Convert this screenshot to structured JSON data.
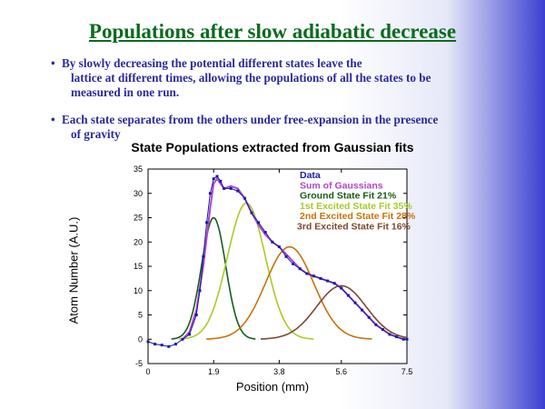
{
  "slide": {
    "title": "Populations after slow adiabatic decrease",
    "bullets": [
      {
        "line1": "By slowly decreasing the potential different states leave the",
        "line2": "lattice at different times, allowing the populations of all the states to be",
        "line3": "measured in one run."
      },
      {
        "line1": "Each state separates from the others under free-expansion in the presence",
        "line2": "of gravity"
      }
    ]
  },
  "chart_data": {
    "type": "line",
    "title": "State Populations extracted from Gaussian fits",
    "xlabel": "Position (mm)",
    "ylabel": "Atom Number (A.U.)",
    "xlim": [
      0,
      7.5
    ],
    "ylim": [
      -5,
      35
    ],
    "x_ticks": [
      "0",
      "1.9",
      "3.8",
      "5.6",
      "7.5"
    ],
    "y_ticks": [
      "35",
      "30",
      "25",
      "20",
      "15",
      "10",
      "5",
      "0",
      "-5"
    ],
    "legend_position": "top-right",
    "series": [
      {
        "name": "Data",
        "color": "#1a1aa8",
        "style": "points",
        "x": [
          0.0,
          0.2,
          0.4,
          0.6,
          0.8,
          1.0,
          1.2,
          1.4,
          1.5,
          1.6,
          1.7,
          1.8,
          1.9,
          2.0,
          2.1,
          2.2,
          2.4,
          2.6,
          2.8,
          3.0,
          3.2,
          3.4,
          3.6,
          3.8,
          4.0,
          4.2,
          4.4,
          4.6,
          4.8,
          5.0,
          5.2,
          5.4,
          5.6,
          5.8,
          6.0,
          6.2,
          6.4,
          6.6,
          6.8,
          7.0,
          7.2,
          7.4,
          7.5
        ],
        "y": [
          -0.5,
          -1,
          -1.2,
          -1.5,
          -1,
          0,
          1,
          5,
          10,
          17,
          24,
          30,
          33,
          33.5,
          32.5,
          31,
          31,
          30.5,
          29,
          26,
          24,
          22,
          20,
          19,
          17,
          15.5,
          14.5,
          13.5,
          13,
          12.5,
          12,
          11.5,
          10.5,
          9,
          7.5,
          6,
          4.5,
          3,
          2,
          1,
          0.5,
          0,
          0
        ]
      },
      {
        "name": "Sum of Gaussians",
        "color": "#b146c9",
        "style": "line",
        "x": [
          1.0,
          1.2,
          1.4,
          1.6,
          1.8,
          1.9,
          2.0,
          2.2,
          2.4,
          2.6,
          2.8,
          3.0,
          3.2,
          3.4,
          3.6,
          3.8,
          4.0,
          4.2,
          4.4,
          4.6,
          4.8,
          5.0,
          5.2,
          5.4,
          5.6,
          5.8,
          6.0,
          6.2,
          6.4,
          6.6,
          6.8,
          7.0,
          7.2,
          7.4
        ],
        "y": [
          0,
          1.5,
          6,
          15,
          27,
          32,
          33,
          31,
          31.5,
          31,
          29,
          26,
          23.5,
          21.5,
          20,
          19,
          17.5,
          16,
          14.5,
          13.5,
          13,
          12.5,
          12,
          11.5,
          10.5,
          9,
          7.5,
          6,
          4.5,
          3,
          2,
          1,
          0.5,
          0
        ]
      },
      {
        "name": "Ground State Fit",
        "percent": "21%",
        "color": "#1a5a1a",
        "style": "line",
        "center": 1.9,
        "amp": 25,
        "sigma": 0.35
      },
      {
        "name": "1st Excited State Fit",
        "percent": "35%",
        "color": "#a8cc2a",
        "style": "line",
        "center": 2.85,
        "amp": 28,
        "sigma": 0.55
      },
      {
        "name": "2nd Excited State Fit",
        "percent": "28%",
        "color": "#c8720a",
        "style": "line",
        "center": 4.1,
        "amp": 19,
        "sigma": 0.7
      },
      {
        "name": "3rd Excited State Fit",
        "percent": "16%",
        "color": "#7a4a32",
        "style": "line",
        "center": 5.6,
        "amp": 11,
        "sigma": 0.72
      }
    ]
  }
}
